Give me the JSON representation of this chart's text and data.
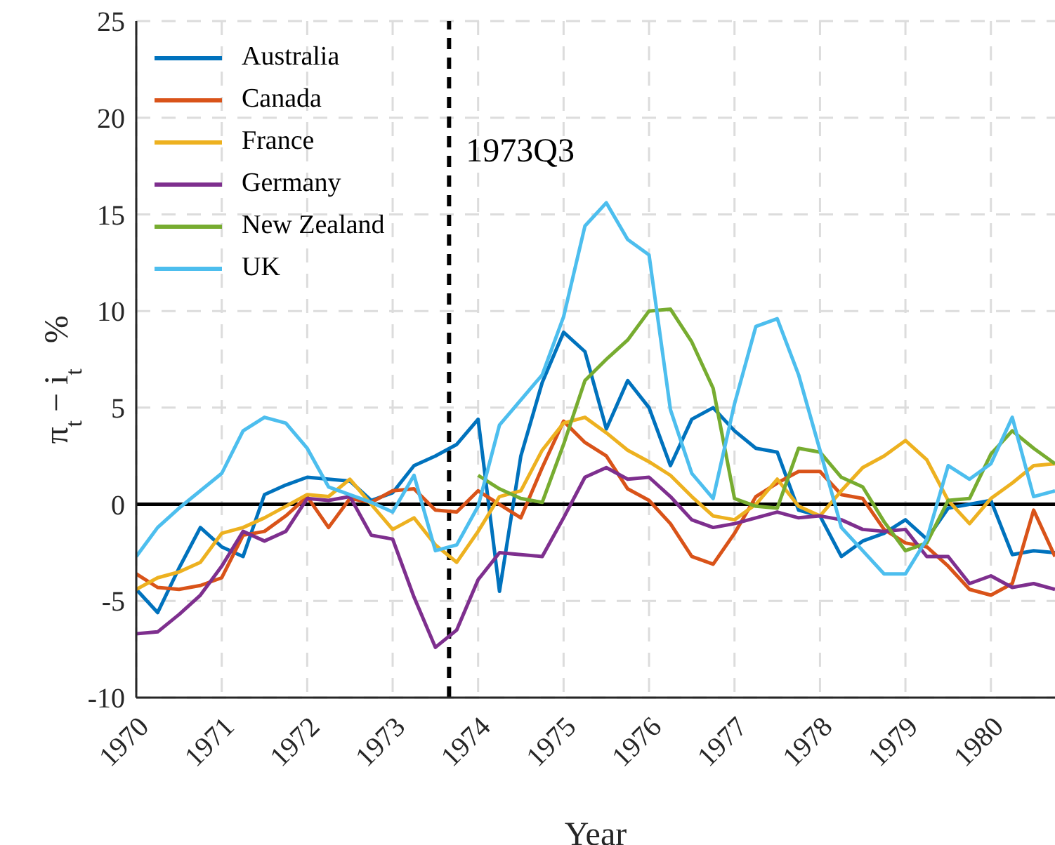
{
  "chart_data": {
    "type": "line",
    "xlabel": "Year",
    "ylabel": "π$_{t}$ − i$_{t}$   %",
    "x": [
      1970,
      1970.25,
      1970.5,
      1970.75,
      1971,
      1971.25,
      1971.5,
      1971.75,
      1972,
      1972.25,
      1972.5,
      1972.75,
      1973,
      1973.25,
      1973.5,
      1973.75,
      1974,
      1974.25,
      1974.5,
      1974.75,
      1975,
      1975.25,
      1975.5,
      1975.75,
      1976,
      1976.25,
      1976.5,
      1976.75,
      1977,
      1977.25,
      1977.5,
      1977.75,
      1978,
      1978.25,
      1978.5,
      1978.75,
      1979,
      1979.25,
      1979.5,
      1979.75,
      1980,
      1980.25,
      1980.5,
      1980.75
    ],
    "series": [
      {
        "name": "Australia",
        "color": "#0072bd",
        "values": [
          -4.4,
          -5.6,
          -3.3,
          -1.2,
          -2.2,
          -2.7,
          0.5,
          1.0,
          1.4,
          1.3,
          1.2,
          0.2,
          0.6,
          2.0,
          2.5,
          3.1,
          4.4,
          -4.5,
          2.5,
          6.3,
          8.9,
          7.9,
          3.9,
          6.4,
          5.0,
          2.0,
          4.4,
          5.0,
          3.8,
          2.9,
          2.7,
          -0.3,
          -0.6,
          -2.7,
          -1.9,
          -1.5,
          -0.8,
          -1.8,
          -0.2,
          0.0,
          0.2,
          -2.6,
          -2.4,
          -2.5
        ]
      },
      {
        "name": "Canada",
        "color": "#d95319",
        "values": [
          -3.6,
          -4.3,
          -4.4,
          -4.2,
          -3.8,
          -1.6,
          -1.4,
          -0.6,
          0.4,
          -1.2,
          0.3,
          0.1,
          0.7,
          0.8,
          -0.3,
          -0.4,
          0.7,
          0.0,
          -0.7,
          1.9,
          4.3,
          3.2,
          2.5,
          0.8,
          0.2,
          -1.0,
          -2.7,
          -3.1,
          -1.5,
          0.4,
          1.1,
          1.7,
          1.7,
          0.5,
          0.3,
          -1.3,
          -2.0,
          -2.2,
          -3.2,
          -4.4,
          -4.7,
          -4.1,
          -0.3,
          -2.7
        ]
      },
      {
        "name": "France",
        "color": "#edb120",
        "values": [
          -4.4,
          -3.8,
          -3.5,
          -3.0,
          -1.5,
          -1.2,
          -0.7,
          -0.1,
          0.5,
          0.4,
          1.3,
          0.0,
          -1.3,
          -0.7,
          -2.1,
          -3.0,
          -1.4,
          0.4,
          0.7,
          2.8,
          4.2,
          4.5,
          3.7,
          2.8,
          2.2,
          1.5,
          0.4,
          -0.6,
          -0.8,
          0.0,
          1.3,
          -0.1,
          -0.6,
          0.7,
          1.9,
          2.5,
          3.3,
          2.3,
          0.2,
          -1.0,
          0.3,
          1.1,
          2.0,
          2.1
        ]
      },
      {
        "name": "Germany",
        "color": "#7e2f8e",
        "values": [
          -6.7,
          -6.6,
          -5.7,
          -4.7,
          -3.2,
          -1.4,
          -1.9,
          -1.4,
          0.3,
          0.2,
          0.4,
          -1.6,
          -1.8,
          -4.8,
          -7.4,
          -6.5,
          -3.9,
          -2.5,
          -2.6,
          -2.7,
          -0.7,
          1.4,
          1.9,
          1.3,
          1.4,
          0.4,
          -0.8,
          -1.2,
          -1.0,
          -0.7,
          -0.4,
          -0.7,
          -0.6,
          -0.8,
          -1.3,
          -1.4,
          -1.3,
          -2.7,
          -2.7,
          -4.1,
          -3.7,
          -4.3,
          -4.1,
          -4.4
        ]
      },
      {
        "name": "New Zealand",
        "color": "#77ac30",
        "values": [
          null,
          null,
          null,
          null,
          null,
          null,
          null,
          null,
          null,
          null,
          null,
          null,
          null,
          null,
          null,
          null,
          1.5,
          0.8,
          0.3,
          0.1,
          3.1,
          6.4,
          7.5,
          8.5,
          10.0,
          10.1,
          8.4,
          6.0,
          0.3,
          -0.1,
          -0.2,
          2.9,
          2.7,
          1.4,
          0.9,
          -0.9,
          -2.4,
          -2.0,
          0.2,
          0.3,
          2.6,
          3.8,
          2.9,
          2.1
        ]
      },
      {
        "name": "UK",
        "color": "#4dbeee",
        "values": [
          -2.7,
          -1.2,
          -0.2,
          0.7,
          1.6,
          3.8,
          4.5,
          4.2,
          2.9,
          0.9,
          0.5,
          0.1,
          -0.4,
          1.5,
          -2.4,
          -2.1,
          -0.1,
          4.1,
          5.4,
          6.7,
          9.7,
          14.4,
          15.6,
          13.7,
          12.9,
          4.9,
          1.6,
          0.3,
          5.2,
          9.2,
          9.6,
          6.7,
          2.8,
          -1.2,
          -2.4,
          -3.6,
          -3.6,
          -1.8,
          2.0,
          1.3,
          2.1,
          4.5,
          0.4,
          0.7
        ]
      }
    ],
    "xlim": [
      1970,
      1980.75
    ],
    "xticks": [
      1970,
      1971,
      1972,
      1973,
      1974,
      1975,
      1976,
      1977,
      1978,
      1979,
      1980
    ],
    "ylim": [
      -10,
      25
    ],
    "yticks": [
      -10,
      -5,
      0,
      5,
      10,
      15,
      20,
      25
    ],
    "grid": true,
    "legend": "top left",
    "marker": "none",
    "line_style": "solid",
    "ref_lines": [
      {
        "axis": "y",
        "value": 0,
        "color": "#000000",
        "line_style": "solid"
      },
      {
        "axis": "x",
        "value": 1973.66,
        "label": "1973Q3",
        "color": "#000000",
        "line_style": "dashed"
      }
    ]
  }
}
